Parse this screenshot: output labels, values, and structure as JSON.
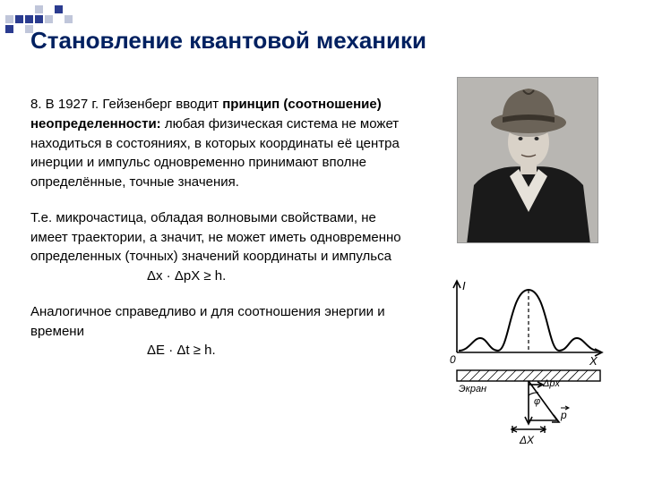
{
  "deco": {
    "squares": [
      {
        "r": 0,
        "c": 3,
        "color": "#c0c6da"
      },
      {
        "r": 0,
        "c": 5,
        "color": "#2a3b8f"
      },
      {
        "r": 1,
        "c": 0,
        "color": "#c0c6da"
      },
      {
        "r": 1,
        "c": 1,
        "color": "#2a3b8f"
      },
      {
        "r": 1,
        "c": 2,
        "color": "#2a3b8f"
      },
      {
        "r": 1,
        "c": 3,
        "color": "#2a3b8f"
      },
      {
        "r": 1,
        "c": 4,
        "color": "#c0c6da"
      },
      {
        "r": 1,
        "c": 6,
        "color": "#c0c6da"
      },
      {
        "r": 2,
        "c": 0,
        "color": "#2a3b8f"
      },
      {
        "r": 2,
        "c": 2,
        "color": "#c0c6da"
      }
    ]
  },
  "title": "Становление квантовой механики",
  "para1": {
    "lead": "8. В 1927 г. Гейзенберг вводит ",
    "bold": "принцип (соотношение) неопределенности:",
    "rest": " любая физическая система не может находиться в состояниях, в которых координаты её центра инерции и импульс одновременно принимают вполне определённые, точные значения."
  },
  "para2": "Т.е. микрочастица, обладая волновыми свойствами, не имеет траектории, а значит, не может иметь одновременно определенных (точных) значений координаты и импульса",
  "formula1": "Δx · ΔpX ≥ h.",
  "para3": "Аналогичное  справедливо и для соотношения энергии и времени",
  "formula2": "ΔE · Δt ≥ h.",
  "diagram": {
    "curve_color": "#000000",
    "axis_label_I": "I",
    "axis_label_X": "X",
    "axis_origin": "0",
    "screen_label": "Экран",
    "delta_px": "Δpx",
    "vec_p": "p",
    "angle": "φ",
    "delta_x": "ΔX",
    "peak_x": 90,
    "peak_h": 66,
    "side_peak_h": 14,
    "xlim": [
      0,
      180
    ],
    "background": "#ffffff"
  },
  "photo": {
    "background": "#b8b6b2",
    "coat": "#1a1a1a",
    "face": "#d9d2c8",
    "hat": "#6b6358"
  },
  "colors": {
    "title": "#002060",
    "text": "#000000",
    "bg": "#ffffff"
  }
}
